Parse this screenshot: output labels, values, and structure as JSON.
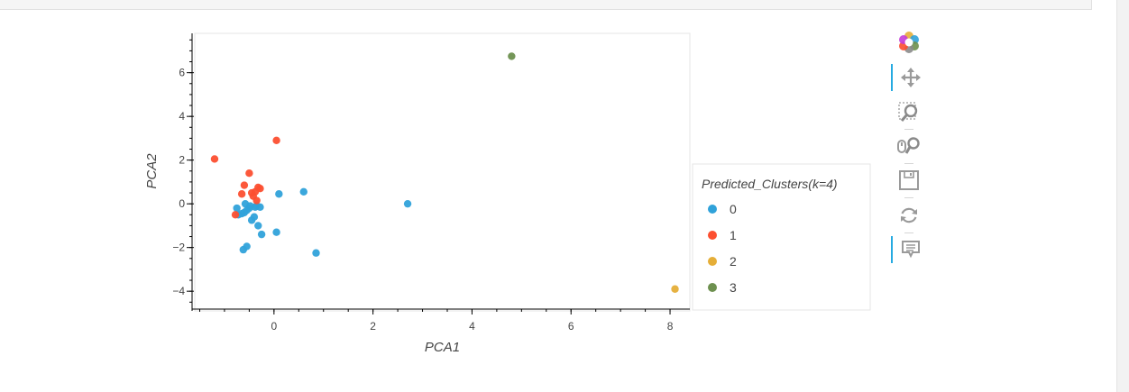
{
  "toolbar": {
    "tools": [
      {
        "icon": "bokeh-logo-icon",
        "active": false
      },
      {
        "icon": "pan-icon",
        "active": true
      },
      {
        "icon": "box-zoom-icon",
        "active": false
      },
      {
        "icon": "wheel-zoom-icon",
        "active": false
      },
      {
        "icon": "save-icon",
        "active": false
      },
      {
        "icon": "reset-icon",
        "active": false
      },
      {
        "icon": "hover-icon",
        "active": true
      }
    ]
  },
  "chart_data": {
    "type": "scatter",
    "xlabel": "PCA1",
    "ylabel": "PCA2",
    "xlim": [
      -1.6,
      8.4
    ],
    "ylim": [
      -4.9,
      7.8
    ],
    "x_ticks": [
      0,
      2,
      4,
      6,
      8
    ],
    "y_ticks": [
      -4,
      -2,
      0,
      2,
      4,
      6
    ],
    "x_tick_labels": [
      "0",
      "2",
      "4",
      "6",
      "8"
    ],
    "y_tick_labels": [
      "−4",
      "−2",
      "0",
      "2",
      "4",
      "6"
    ],
    "grid": false,
    "legend_title": "Predicted_Clusters(k=4)",
    "legend_position": "right",
    "series": [
      {
        "name": "0",
        "color": "#30a2da",
        "points": [
          [
            -0.75,
            -0.2
          ],
          [
            -0.72,
            -0.5
          ],
          [
            -0.65,
            -0.45
          ],
          [
            -0.6,
            -0.4
          ],
          [
            -0.58,
            0.0
          ],
          [
            -0.55,
            -0.3
          ],
          [
            -0.5,
            -0.2
          ],
          [
            -0.48,
            -0.1
          ],
          [
            -0.45,
            -0.75
          ],
          [
            -0.4,
            -0.6
          ],
          [
            -0.38,
            -0.15
          ],
          [
            -0.35,
            -0.1
          ],
          [
            -0.32,
            -1.0
          ],
          [
            -0.28,
            -0.15
          ],
          [
            -0.25,
            -1.4
          ],
          [
            -0.62,
            -2.1
          ],
          [
            -0.55,
            -1.95
          ],
          [
            0.05,
            -1.3
          ],
          [
            0.1,
            0.45
          ],
          [
            0.6,
            0.55
          ],
          [
            0.85,
            -2.25
          ],
          [
            2.7,
            0.0
          ]
        ]
      },
      {
        "name": "1",
        "color": "#fc4f30",
        "points": [
          [
            -1.2,
            2.05
          ],
          [
            -0.78,
            -0.5
          ],
          [
            -0.65,
            0.45
          ],
          [
            -0.6,
            0.85
          ],
          [
            -0.5,
            1.4
          ],
          [
            -0.45,
            0.5
          ],
          [
            -0.42,
            0.35
          ],
          [
            -0.38,
            0.55
          ],
          [
            -0.35,
            0.15
          ],
          [
            -0.32,
            0.75
          ],
          [
            -0.28,
            0.7
          ],
          [
            0.05,
            2.9
          ]
        ]
      },
      {
        "name": "2",
        "color": "#e5ae38",
        "points": [
          [
            8.1,
            -3.9
          ]
        ]
      },
      {
        "name": "3",
        "color": "#6d904f",
        "points": [
          [
            4.8,
            6.75
          ]
        ]
      }
    ]
  }
}
